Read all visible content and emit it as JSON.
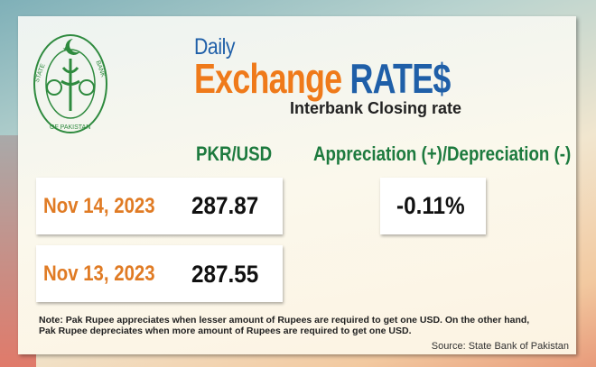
{
  "header": {
    "daily": "Daily",
    "title_part1": "Exchange",
    "title_part2": "RATE$",
    "subtitle": "Interbank Closing rate"
  },
  "logo": {
    "text_top": "STATE BANK",
    "text_bottom": "OF PAKISTAN"
  },
  "columns": {
    "rate": "PKR/USD",
    "change": "Appreciation (+)/Depreciation (-)"
  },
  "rows": [
    {
      "date": "Nov 14, 2023",
      "rate": "287.87"
    },
    {
      "date": "Nov 13, 2023",
      "rate": "287.55"
    }
  ],
  "change_value": "-0.11%",
  "note": "Note: Pak Rupee appreciates when lesser amount of Rupees are required to get one USD.  On the other hand, Pak Rupee depreciates when more amount of Rupees are required to get one USD.",
  "source": "Source: State Bank of Pakistan",
  "colors": {
    "orange": "#ef7a1a",
    "blue": "#1f5fa8",
    "green": "#1d7a3e"
  }
}
